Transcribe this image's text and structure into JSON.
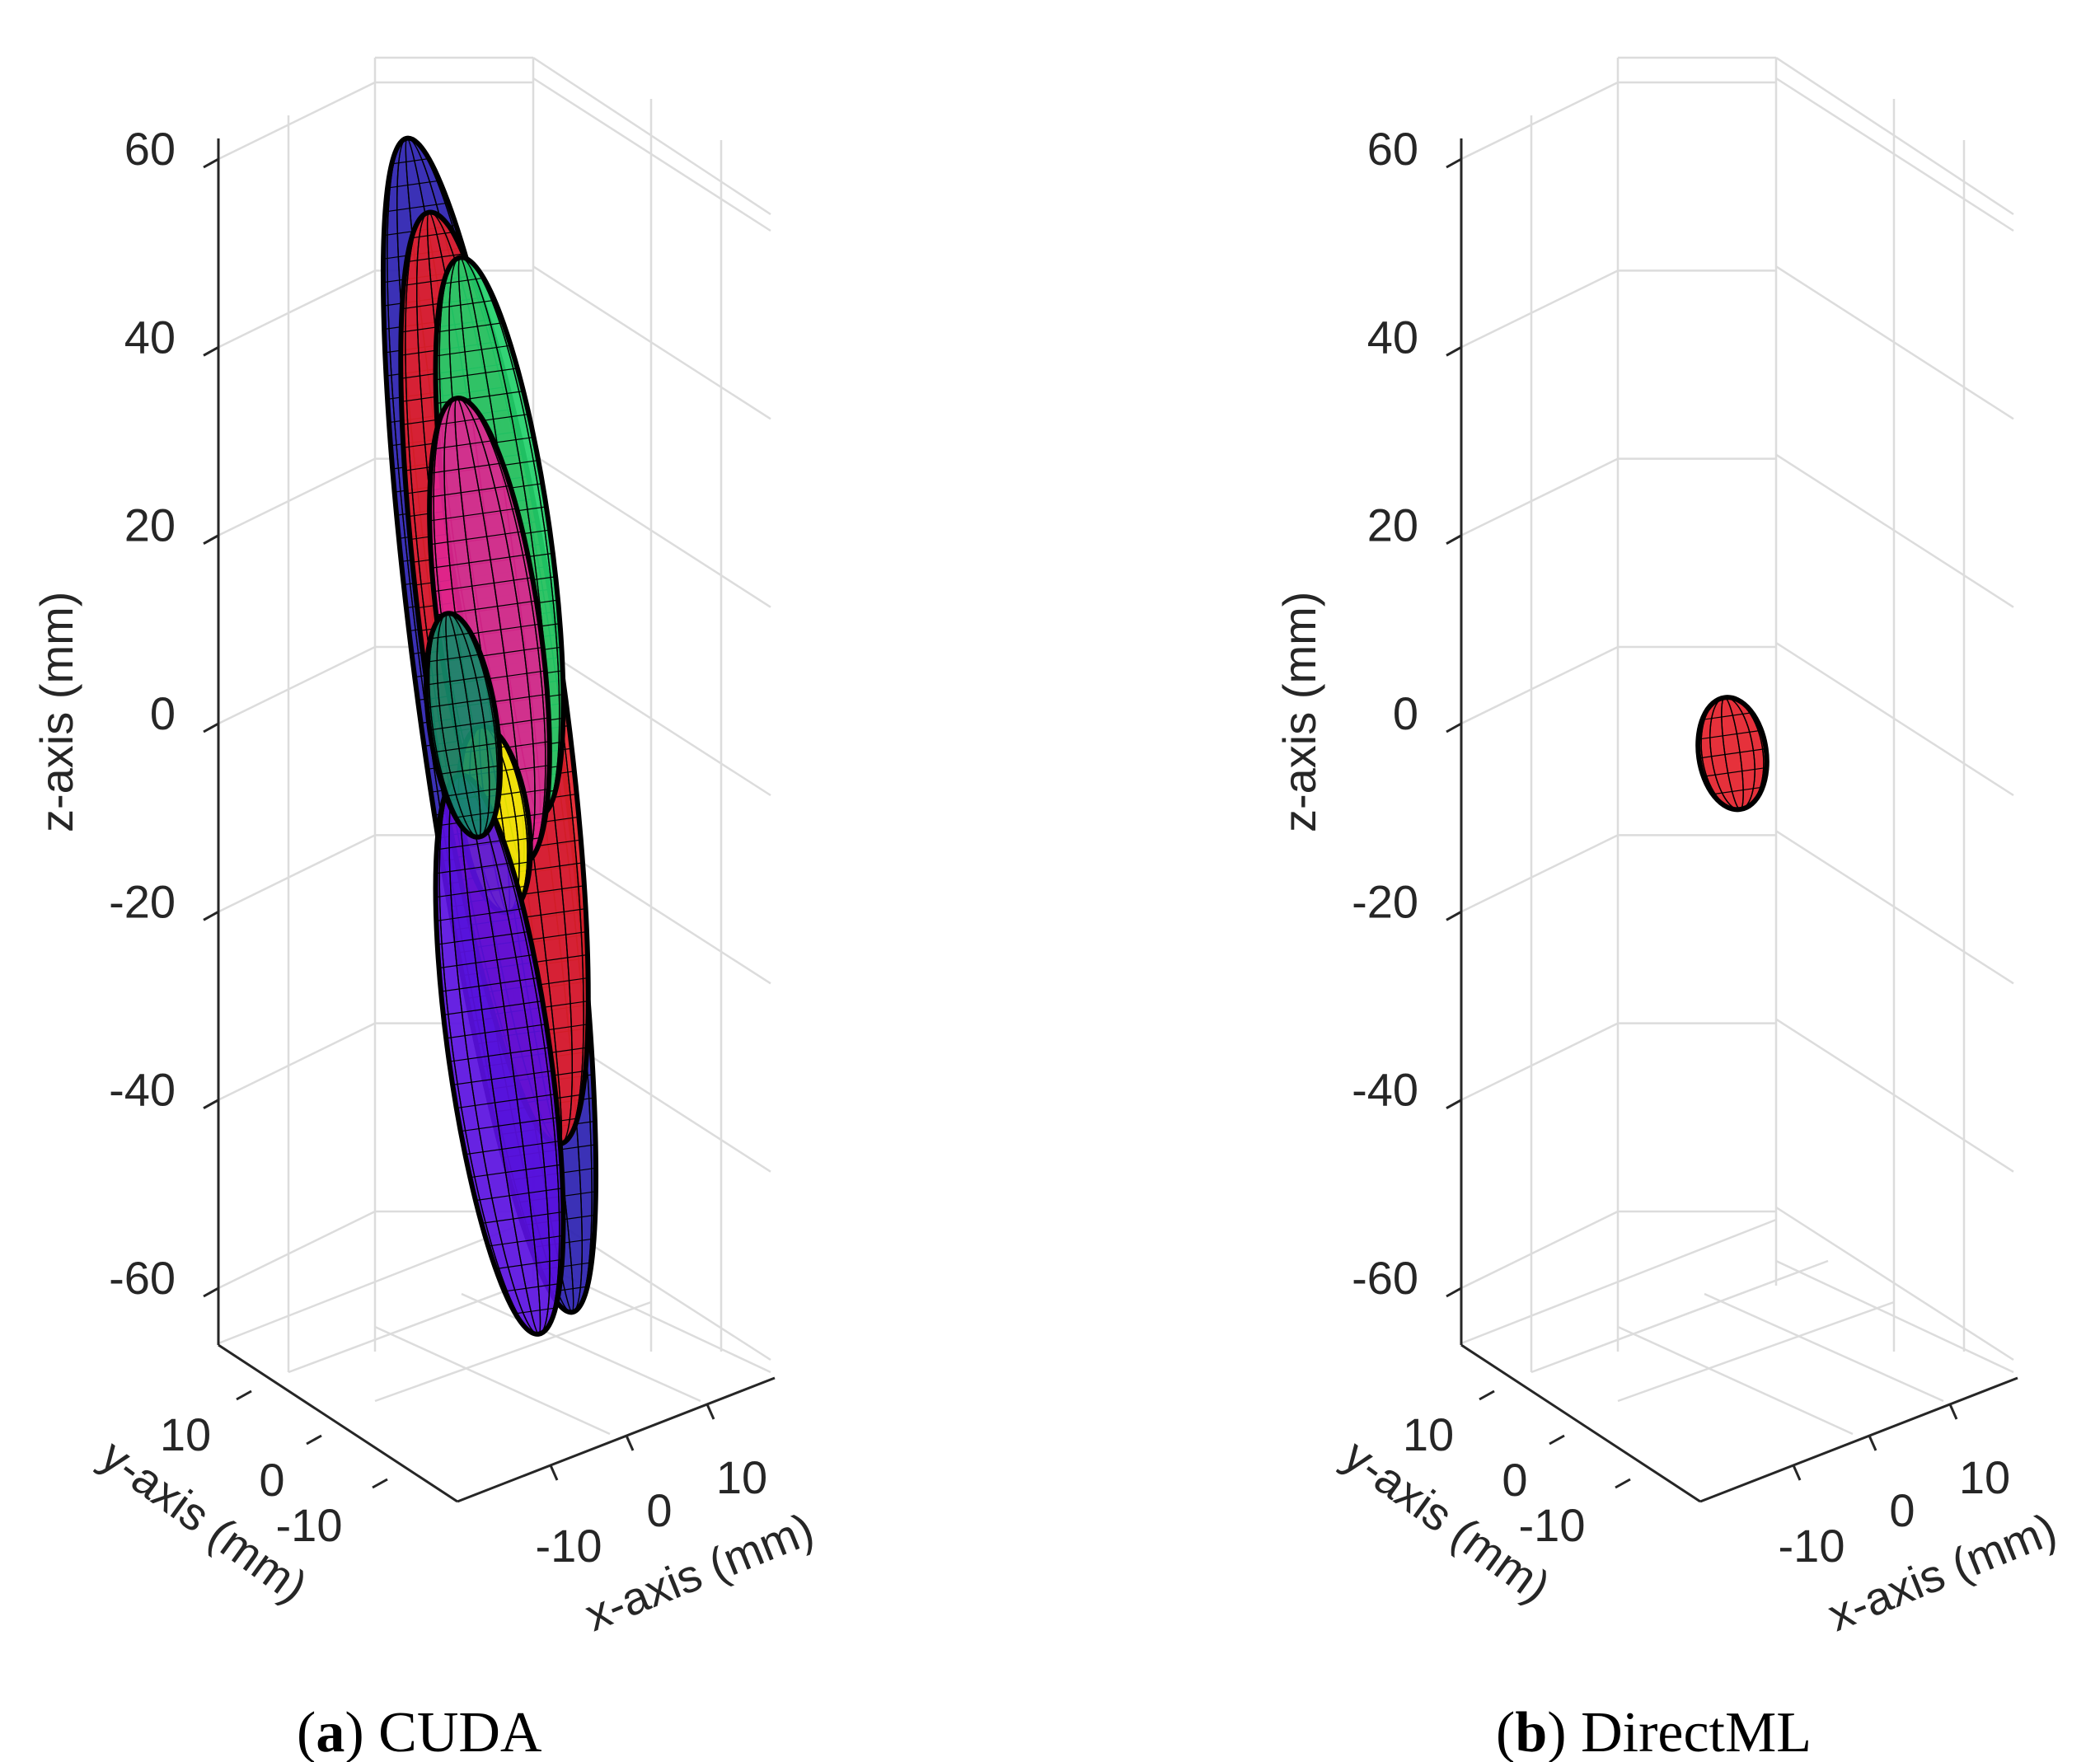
{
  "chart_data": [
    {
      "type": "3d-surface",
      "caption_letter": "a",
      "caption_text": "CUDA",
      "xlabel": "x-axis (mm)",
      "ylabel": "y-axis (mm)",
      "zlabel": "z-axis (mm)",
      "zlim": [
        -65,
        65
      ],
      "xlim": [
        -20,
        20
      ],
      "ylim": [
        -20,
        20
      ],
      "z_ticks": [
        "60",
        "40",
        "20",
        "0",
        "-20",
        "-40",
        "-60"
      ],
      "x_ticks": [
        "-10",
        "0",
        "10"
      ],
      "y_ticks": [
        "10",
        "0",
        "-10"
      ],
      "surfaces": [
        {
          "name": "ellipsoid-blue",
          "color": "#2a1fb0",
          "center": [
            0,
            0,
            0
          ],
          "semi_axes": [
            4,
            4,
            63
          ]
        },
        {
          "name": "ellipsoid-red",
          "color": "#e4202a",
          "center": [
            0,
            0,
            5
          ],
          "semi_axes": [
            4,
            4,
            50
          ]
        },
        {
          "name": "ellipsoid-green",
          "color": "#22d06a",
          "center": [
            0,
            0,
            20
          ],
          "semi_axes": [
            3,
            3,
            30
          ]
        },
        {
          "name": "ellipsoid-magenta",
          "color": "#e02590",
          "center": [
            0,
            0,
            10
          ],
          "semi_axes": [
            3,
            3,
            25
          ]
        },
        {
          "name": "ellipsoid-yellow",
          "color": "#f2f000",
          "center": [
            0,
            0,
            -10
          ],
          "semi_axes": [
            2,
            2,
            10
          ]
        },
        {
          "name": "ellipsoid-purple",
          "color": "#5a10e0",
          "center": [
            0,
            0,
            -35
          ],
          "semi_axes": [
            3,
            3,
            30
          ]
        },
        {
          "name": "ellipsoid-teal",
          "color": "#158a6a",
          "center": [
            -2,
            0,
            0
          ],
          "semi_axes": [
            2,
            2,
            12
          ]
        }
      ]
    },
    {
      "type": "3d-surface",
      "caption_letter": "b",
      "caption_text": "DirectML",
      "xlabel": "x-axis (mm)",
      "ylabel": "y-axis (mm)",
      "zlabel": "z-axis (mm)",
      "zlim": [
        -65,
        65
      ],
      "xlim": [
        -20,
        20
      ],
      "ylim": [
        -20,
        20
      ],
      "z_ticks": [
        "60",
        "40",
        "20",
        "0",
        "-20",
        "-40",
        "-60"
      ],
      "x_ticks": [
        "-10",
        "0",
        "10"
      ],
      "y_ticks": [
        "10",
        "0",
        "-10"
      ],
      "surfaces": [
        {
          "name": "ellipsoid-red-small",
          "color": "#e4202a",
          "center": [
            0,
            0,
            -3
          ],
          "semi_axes": [
            2,
            2,
            6
          ]
        }
      ]
    }
  ],
  "colors": {
    "grid": "#dcdcdc",
    "axis": "#262626",
    "edge": "#000000"
  }
}
